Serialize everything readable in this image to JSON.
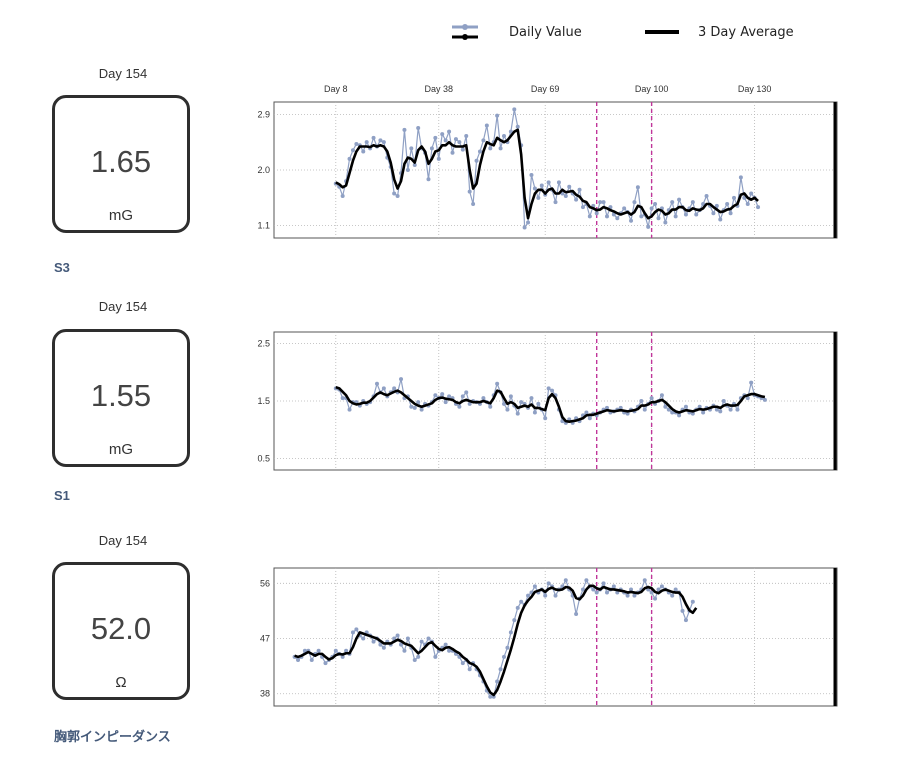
{
  "legend": {
    "daily_label": "Daily Value",
    "avg_label": "3 Day Average",
    "daily_color": "#8fa0c4",
    "avg_color": "#000000",
    "marker_color": "#c0359a"
  },
  "x_labels": [
    "Day 8",
    "Day 38",
    "Day 69",
    "Day 100",
    "Day 130"
  ],
  "panels": [
    {
      "day_label": "Day 154",
      "value": "1.65",
      "unit": "mG",
      "name": "S3"
    },
    {
      "day_label": "Day 154",
      "value": "1.55",
      "unit": "mG",
      "name": "S1"
    },
    {
      "day_label": "Day 154",
      "value": "52.0",
      "unit": "Ω",
      "name": "胸郭インピーダンス"
    }
  ],
  "chart_data": [
    {
      "type": "line",
      "title": "S3",
      "xlim": [
        -10,
        154
      ],
      "x_ticks": [
        8,
        38,
        69,
        100,
        130
      ],
      "ylim": [
        0.9,
        3.1
      ],
      "y_ticks": [
        1.1,
        2.0,
        2.9
      ],
      "y_tick_labels": [
        "1.1",
        "2.0",
        "2.9"
      ],
      "markers": [
        84,
        100
      ],
      "series": [
        {
          "name": "Daily Value",
          "start_day": 8,
          "values": [
            1.78,
            1.73,
            1.58,
            1.82,
            2.18,
            2.32,
            2.42,
            2.4,
            2.3,
            2.45,
            2.35,
            2.52,
            2.38,
            2.48,
            2.45,
            2.2,
            2.05,
            1.62,
            1.58,
            1.95,
            2.65,
            2.0,
            2.35,
            2.08,
            2.68,
            2.35,
            2.28,
            1.85,
            2.35,
            2.52,
            2.18,
            2.58,
            2.48,
            2.62,
            2.28,
            2.5,
            2.45,
            2.33,
            2.55,
            1.65,
            1.45,
            2.15,
            2.3,
            2.48,
            2.72,
            2.35,
            2.45,
            2.88,
            2.35,
            2.55,
            2.45,
            2.62,
            2.98,
            2.7,
            2.4,
            1.07,
            1.15,
            1.92,
            1.7,
            1.55,
            1.75,
            1.6,
            1.8,
            1.68,
            1.48,
            1.8,
            1.62,
            1.58,
            1.73,
            1.62,
            1.52,
            1.68,
            1.4,
            1.45,
            1.25,
            1.42,
            1.3,
            1.48,
            1.48,
            1.25,
            1.4,
            1.28,
            1.22,
            1.3,
            1.38,
            1.32,
            1.18,
            1.48,
            1.72,
            1.25,
            1.28,
            1.08,
            1.38,
            1.45,
            1.22,
            1.38,
            1.15,
            1.35,
            1.48,
            1.25,
            1.52,
            1.4,
            1.28,
            1.38,
            1.48,
            1.28,
            1.35,
            1.45,
            1.58,
            1.42,
            1.3,
            1.42,
            1.2,
            1.35,
            1.45,
            1.3,
            1.55,
            1.42,
            1.88,
            1.55,
            1.45,
            1.62,
            1.55,
            1.4
          ]
        },
        {
          "name": "3 Day Average",
          "start_day": 8,
          "values": [
            1.8,
            1.77,
            1.72,
            1.75,
            1.95,
            2.15,
            2.3,
            2.38,
            2.38,
            2.38,
            2.37,
            2.4,
            2.38,
            2.4,
            2.38,
            2.3,
            2.12,
            1.85,
            1.7,
            1.82,
            2.1,
            2.2,
            2.18,
            2.12,
            2.32,
            2.38,
            2.3,
            2.1,
            2.18,
            2.3,
            2.32,
            2.4,
            2.4,
            2.45,
            2.4,
            2.38,
            2.38,
            2.38,
            2.4,
            2.0,
            1.7,
            1.78,
            2.08,
            2.3,
            2.45,
            2.42,
            2.4,
            2.52,
            2.48,
            2.45,
            2.48,
            2.55,
            2.62,
            2.65,
            2.25,
            1.55,
            1.22,
            1.45,
            1.62,
            1.68,
            1.68,
            1.62,
            1.68,
            1.7,
            1.62,
            1.62,
            1.68,
            1.64,
            1.65,
            1.66,
            1.6,
            1.57,
            1.5,
            1.48,
            1.4,
            1.38,
            1.35,
            1.36,
            1.4,
            1.38,
            1.35,
            1.33,
            1.3,
            1.28,
            1.3,
            1.32,
            1.28,
            1.32,
            1.42,
            1.4,
            1.3,
            1.22,
            1.25,
            1.32,
            1.36,
            1.34,
            1.28,
            1.3,
            1.36,
            1.36,
            1.4,
            1.4,
            1.35,
            1.34,
            1.38,
            1.36,
            1.35,
            1.38,
            1.45,
            1.45,
            1.4,
            1.36,
            1.32,
            1.33,
            1.36,
            1.37,
            1.42,
            1.45,
            1.6,
            1.62,
            1.55,
            1.52,
            1.55,
            1.5
          ]
        }
      ]
    },
    {
      "type": "line",
      "title": "S1",
      "xlim": [
        -10,
        154
      ],
      "x_ticks": [
        8,
        38,
        69,
        100,
        130
      ],
      "ylim": [
        0.3,
        2.7
      ],
      "y_ticks": [
        0.5,
        1.5,
        2.5
      ],
      "y_tick_labels": [
        "0.5",
        "1.5",
        "2.5"
      ],
      "markers": [
        84,
        100
      ],
      "series": [
        {
          "name": "Daily Value",
          "start_day": 8,
          "values": [
            1.72,
            1.7,
            1.55,
            1.55,
            1.35,
            1.48,
            1.48,
            1.42,
            1.5,
            1.45,
            1.48,
            1.58,
            1.8,
            1.65,
            1.72,
            1.58,
            1.65,
            1.72,
            1.65,
            1.88,
            1.55,
            1.58,
            1.4,
            1.38,
            1.48,
            1.35,
            1.45,
            1.42,
            1.48,
            1.6,
            1.55,
            1.62,
            1.48,
            1.58,
            1.55,
            1.45,
            1.4,
            1.58,
            1.65,
            1.45,
            1.5,
            1.48,
            1.45,
            1.55,
            1.48,
            1.4,
            1.6,
            1.8,
            1.65,
            1.45,
            1.35,
            1.58,
            1.42,
            1.28,
            1.48,
            1.45,
            1.38,
            1.55,
            1.3,
            1.45,
            1.35,
            1.2,
            1.72,
            1.68,
            1.6,
            1.35,
            1.15,
            1.12,
            1.18,
            1.12,
            1.2,
            1.15,
            1.25,
            1.3,
            1.2,
            1.28,
            1.25,
            1.3,
            1.35,
            1.38,
            1.3,
            1.32,
            1.35,
            1.38,
            1.3,
            1.28,
            1.35,
            1.32,
            1.4,
            1.5,
            1.35,
            1.45,
            1.55,
            1.45,
            1.5,
            1.6,
            1.4,
            1.35,
            1.3,
            1.3,
            1.25,
            1.35,
            1.4,
            1.3,
            1.28,
            1.35,
            1.4,
            1.3,
            1.38,
            1.35,
            1.42,
            1.35,
            1.32,
            1.5,
            1.42,
            1.35,
            1.45,
            1.35,
            1.55,
            1.6,
            1.55,
            1.82,
            1.6,
            1.58,
            1.55,
            1.52
          ]
        },
        {
          "name": "3 Day Average",
          "start_day": 8,
          "values": [
            1.74,
            1.72,
            1.66,
            1.6,
            1.5,
            1.46,
            1.44,
            1.45,
            1.47,
            1.47,
            1.5,
            1.56,
            1.62,
            1.65,
            1.62,
            1.6,
            1.63,
            1.66,
            1.68,
            1.65,
            1.6,
            1.55,
            1.5,
            1.45,
            1.42,
            1.4,
            1.42,
            1.44,
            1.46,
            1.52,
            1.55,
            1.56,
            1.54,
            1.53,
            1.52,
            1.48,
            1.46,
            1.5,
            1.52,
            1.5,
            1.48,
            1.48,
            1.48,
            1.5,
            1.48,
            1.46,
            1.55,
            1.68,
            1.66,
            1.55,
            1.45,
            1.48,
            1.45,
            1.38,
            1.4,
            1.42,
            1.4,
            1.44,
            1.38,
            1.38,
            1.36,
            1.34,
            1.55,
            1.62,
            1.55,
            1.4,
            1.22,
            1.15,
            1.14,
            1.15,
            1.16,
            1.18,
            1.2,
            1.25,
            1.26,
            1.26,
            1.28,
            1.3,
            1.32,
            1.34,
            1.33,
            1.32,
            1.33,
            1.34,
            1.33,
            1.32,
            1.33,
            1.34,
            1.36,
            1.42,
            1.42,
            1.44,
            1.48,
            1.48,
            1.5,
            1.52,
            1.48,
            1.42,
            1.36,
            1.32,
            1.3,
            1.32,
            1.34,
            1.33,
            1.32,
            1.34,
            1.36,
            1.35,
            1.36,
            1.38,
            1.4,
            1.4,
            1.38,
            1.42,
            1.44,
            1.42,
            1.42,
            1.43,
            1.5,
            1.58,
            1.6,
            1.62,
            1.62,
            1.6,
            1.58,
            1.57
          ]
        }
      ]
    },
    {
      "type": "line",
      "title": "胸郭インピーダンス",
      "xlim": [
        -10,
        154
      ],
      "x_ticks": [
        8,
        38,
        69,
        100,
        130
      ],
      "ylim": [
        36,
        58.5
      ],
      "y_ticks": [
        38,
        47,
        56
      ],
      "y_tick_labels": [
        "38",
        "47",
        "56"
      ],
      "markers": [
        84,
        100
      ],
      "series": [
        {
          "name": "Daily Value",
          "start_day": -4,
          "values": [
            44,
            43.5,
            44,
            45,
            45,
            43.5,
            44.5,
            45,
            44,
            43,
            43.5,
            44,
            45,
            44.5,
            44,
            45,
            44.5,
            48,
            48.5,
            47.5,
            47,
            48,
            47.5,
            46.5,
            47,
            46,
            45.5,
            46.5,
            46,
            47,
            47.5,
            46,
            45,
            47,
            45.5,
            43.5,
            44,
            46.5,
            46,
            47,
            46.5,
            44,
            45,
            45.5,
            46,
            45,
            45,
            44.5,
            44,
            43,
            43.5,
            42,
            43,
            42,
            41,
            40,
            38.5,
            37.5,
            37.5,
            40,
            42,
            44,
            45.5,
            48,
            50,
            52,
            53,
            52.5,
            54,
            54.5,
            55.5,
            54.5,
            55,
            54,
            56,
            55.5,
            54,
            55,
            55.5,
            56.5,
            55,
            54,
            51,
            53.5,
            55,
            56.5,
            55.5,
            55,
            54.5,
            55,
            56,
            54.5,
            55,
            55.5,
            54.5,
            55,
            54.5,
            54,
            55,
            54,
            54.5,
            55,
            56.5,
            55,
            54.5,
            53.5,
            55,
            55.5,
            55,
            54.5,
            54,
            55,
            54.5,
            51.5,
            50,
            51.5,
            53
          ]
        },
        {
          "name": "3 Day Average",
          "start_day": -4,
          "values": [
            44.2,
            44,
            44.2,
            44.5,
            44.8,
            44.5,
            44.2,
            44.5,
            44.5,
            44,
            43.6,
            43.8,
            44.3,
            44.5,
            44.4,
            44.6,
            44.6,
            45.6,
            47,
            48,
            47.8,
            47.6,
            47.4,
            47.2,
            47,
            46.6,
            46.2,
            46.2,
            46.2,
            46.5,
            46.8,
            46.6,
            46.2,
            46,
            45.8,
            45.2,
            44.6,
            45,
            45.6,
            46.2,
            46.4,
            45.8,
            45.3,
            45.1,
            45.5,
            45.6,
            45.3,
            44.9,
            44.6,
            44,
            43.6,
            43,
            42.8,
            42.4,
            41.6,
            40.4,
            39.2,
            38.2,
            37.8,
            38.6,
            40,
            41.6,
            43.4,
            45.2,
            47.2,
            49.4,
            51.2,
            52.4,
            53.2,
            53.8,
            54.6,
            54.8,
            55,
            54.6,
            55.1,
            55.3,
            55,
            54.9,
            55,
            55.4,
            55.3,
            54.8,
            53.6,
            53.4,
            54,
            55,
            55.6,
            55.6,
            55.2,
            55,
            55.4,
            55.2,
            55,
            55,
            54.9,
            54.8,
            54.7,
            54.5,
            54.6,
            54.5,
            54.4,
            54.6,
            55.2,
            55.4,
            55.2,
            54.6,
            54.4,
            54.8,
            55,
            54.8,
            54.6,
            54.5,
            54.5,
            53.8,
            52.6,
            51.6,
            51.2,
            52
          ]
        }
      ]
    }
  ]
}
